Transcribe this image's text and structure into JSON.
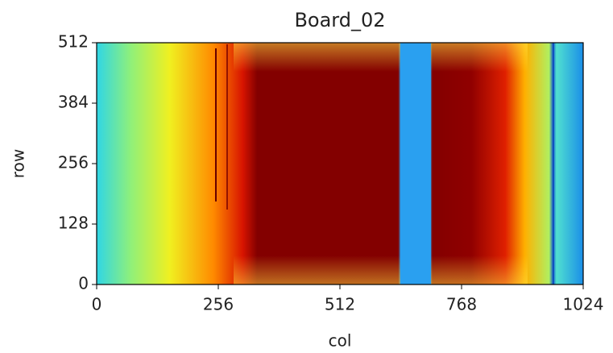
{
  "chart_data": {
    "type": "heatmap",
    "title": "Board_02",
    "xlabel": "col",
    "ylabel": "row",
    "xlim": [
      0,
      1024
    ],
    "ylim": [
      0,
      512
    ],
    "xticks": [
      0,
      256,
      512,
      768,
      1024
    ],
    "yticks": [
      0,
      128,
      256,
      384,
      512
    ]
  }
}
